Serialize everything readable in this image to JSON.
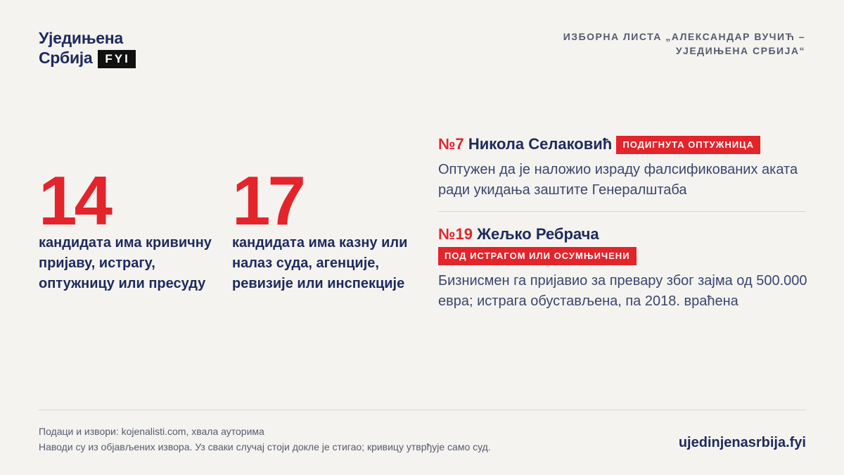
{
  "header": {
    "logo": {
      "line1": "Уједињена",
      "line2": "Србија",
      "badge": "FYI"
    },
    "title_lines": [
      "ИЗБОРНА ЛИСТА „АЛЕКСАНДАР ВУЧИЋ –",
      "УЈЕДИЊЕНА СРБИЈА“"
    ]
  },
  "stats": [
    {
      "number": 14,
      "text": "кандидата има кривичну пријаву, истрагу, оптужницу или пресуду"
    },
    {
      "number": 17,
      "text": "кандидата има казну или налаз суда, агенције, ревизије или инспекције"
    }
  ],
  "candidates": [
    {
      "number": "№7",
      "name": "Никола Селаковић",
      "tag": "ПОДИГНУТА ОПТУЖНИЦА",
      "description": "Оптужен да је наложио израду фалсификованих аката ради укидања заштите Генералштаба"
    },
    {
      "number": "№19",
      "name": "Жељко Ребрача",
      "tag": "ПОД ИСТРАГОМ ИЛИ ОСУМЊИЧЕНИ",
      "description": "Бизнисмен га пријавио за превару због зајма од 500.000 евра; истрага обустављена, па 2018. враћена"
    }
  ],
  "footer": {
    "lines": [
      "Подаци и извори: kojenalisti.com, хвала ауторима",
      "Наводи су из објављених извора. Уз сваки случај стоји докле је стигао; кривицу утврђује само суд."
    ],
    "url": "ujedinjenasrbija.fyi"
  }
}
